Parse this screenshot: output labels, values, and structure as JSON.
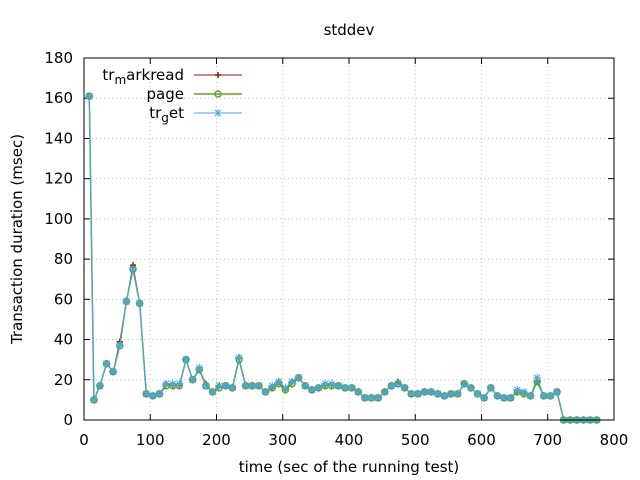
{
  "chart_data": {
    "type": "line",
    "title": "stddev",
    "xlabel": "time (sec of the running test)",
    "ylabel": "Transaction duration (msec)",
    "xlim": [
      0,
      800
    ],
    "ylim": [
      0,
      180
    ],
    "x_ticks": [
      "0",
      "100",
      "200",
      "300",
      "400",
      "500",
      "600",
      "700",
      "800"
    ],
    "y_ticks": [
      "0",
      "20",
      "40",
      "60",
      "80",
      "100",
      "120",
      "140",
      "160",
      "180"
    ],
    "grid": true,
    "legend_position": "top-left",
    "x": [
      8,
      15,
      24,
      34,
      44,
      54,
      64,
      74,
      84,
      94,
      104,
      114,
      124,
      134,
      144,
      154,
      164,
      174,
      184,
      194,
      204,
      214,
      224,
      234,
      244,
      254,
      264,
      274,
      284,
      294,
      304,
      314,
      324,
      334,
      344,
      354,
      364,
      374,
      384,
      394,
      404,
      414,
      424,
      434,
      444,
      454,
      464,
      474,
      484,
      494,
      504,
      514,
      524,
      534,
      544,
      554,
      564,
      574,
      584,
      594,
      604,
      614,
      624,
      634,
      644,
      654,
      664,
      674,
      684,
      694,
      704,
      714,
      724,
      734,
      744,
      754,
      764,
      774
    ],
    "series": [
      {
        "name": "tr_markread",
        "legend_base": "tr",
        "legend_sub": "m",
        "legend_rest": "arkread",
        "color": "#8b1a0e",
        "marker": "plus",
        "values": [
          161,
          10,
          17,
          28,
          24,
          39,
          59,
          77,
          58,
          13,
          12,
          13,
          18,
          17,
          17,
          30,
          20,
          25,
          18,
          14,
          17,
          17,
          16,
          31,
          17,
          17,
          17,
          14,
          16,
          19,
          15,
          19,
          21,
          17,
          15,
          16,
          17,
          17,
          17,
          16,
          16,
          14,
          11,
          11,
          11,
          14,
          17,
          19,
          16,
          13,
          13,
          14,
          14,
          13,
          12,
          13,
          13,
          18,
          16,
          13,
          11,
          16,
          12,
          11,
          11,
          14,
          13,
          12,
          19,
          12,
          12,
          14,
          0,
          0,
          0,
          0,
          0,
          0
        ]
      },
      {
        "name": "page",
        "legend_base": "page",
        "legend_sub": "",
        "legend_rest": "",
        "color": "#5ea32d",
        "marker": "circle",
        "values": [
          161,
          10,
          17,
          28,
          24,
          37,
          59,
          75,
          58,
          13,
          12,
          13,
          17,
          17,
          17,
          30,
          20,
          25,
          17,
          14,
          16,
          17,
          16,
          30,
          17,
          17,
          17,
          14,
          16,
          18,
          15,
          18,
          21,
          17,
          15,
          16,
          17,
          17,
          17,
          16,
          16,
          14,
          11,
          11,
          11,
          14,
          17,
          18,
          16,
          13,
          13,
          14,
          14,
          13,
          12,
          13,
          13,
          18,
          16,
          13,
          11,
          16,
          12,
          11,
          11,
          14,
          13,
          12,
          19,
          12,
          12,
          14,
          0,
          0,
          0,
          0,
          0,
          0
        ]
      },
      {
        "name": "tr_get",
        "legend_base": "tr",
        "legend_sub": "g",
        "legend_rest": "et",
        "color": "#4aa6df",
        "marker": "star",
        "values": [
          161,
          10,
          17,
          28,
          24,
          37,
          59,
          75,
          58,
          13,
          12,
          13,
          18,
          18,
          18,
          30,
          20,
          26,
          17,
          14,
          17,
          17,
          16,
          31,
          17,
          17,
          17,
          14,
          17,
          19,
          16,
          19,
          21,
          17,
          15,
          16,
          18,
          18,
          17,
          16,
          16,
          14,
          11,
          11,
          11,
          14,
          17,
          18,
          16,
          13,
          13,
          14,
          14,
          13,
          12,
          13,
          13,
          18,
          16,
          13,
          11,
          16,
          12,
          11,
          11,
          15,
          14,
          12,
          21,
          12,
          12,
          14,
          0,
          0,
          0,
          0,
          0,
          0
        ]
      }
    ]
  }
}
